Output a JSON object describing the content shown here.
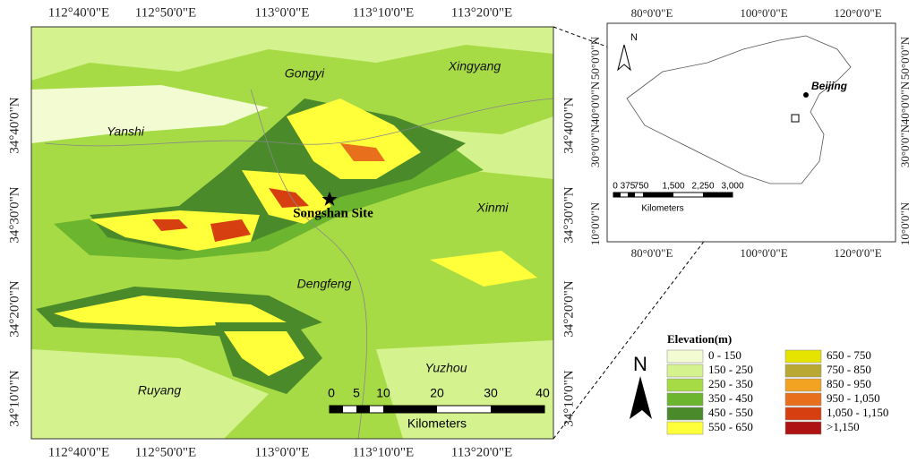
{
  "main_map": {
    "lon_labels": [
      "112°40'0\"E",
      "112°50'0\"E",
      "113°0'0\"E",
      "113°10'0\"E",
      "113°20'0\"E"
    ],
    "lat_labels": [
      "34°40'0\"N",
      "34°30'0\"N",
      "34°20'0\"N",
      "34°10'0\"N"
    ],
    "places": [
      "Gongyi",
      "Xingyang",
      "Yanshi",
      "Xinmi",
      "Dengfeng",
      "Ruyang",
      "Yuzhou"
    ],
    "site": "Songshan Site",
    "scale_bar": {
      "ticks": [
        "0",
        "5",
        "10",
        "20",
        "30",
        "40"
      ],
      "unit": "Kilometers"
    },
    "north": "N"
  },
  "inset_map": {
    "lon_labels": [
      "80°0'0\"E",
      "100°0'0\"E",
      "120°0'0\"E"
    ],
    "lat_labels": [
      "50°0'0\"N",
      "40°0'0\"N",
      "30°0'0\"N",
      "10°0'0\"N"
    ],
    "city": "Beijing",
    "scale_bar": {
      "ticks": [
        "0",
        "375",
        "750",
        "1,500",
        "2,250",
        "3,000"
      ],
      "unit": "Kilometers"
    },
    "north": "N"
  },
  "legend": {
    "title": "Elevation(m)",
    "items": [
      {
        "label": "0 - 150",
        "color": "#f2fbd2"
      },
      {
        "label": "150 - 250",
        "color": "#d4f28e"
      },
      {
        "label": "250 - 350",
        "color": "#a6db46"
      },
      {
        "label": "350 - 450",
        "color": "#6cb52f"
      },
      {
        "label": "450 - 550",
        "color": "#4a8a2a"
      },
      {
        "label": "550 - 650",
        "color": "#ffff3a"
      },
      {
        "label": "650 - 750",
        "color": "#e4e400"
      },
      {
        "label": "750 - 850",
        "color": "#b9a932"
      },
      {
        "label": "850 - 950",
        "color": "#f2a322"
      },
      {
        "label": "950 - 1,050",
        "color": "#e8701c"
      },
      {
        "label": "1,050 - 1,150",
        "color": "#d64010"
      },
      {
        "label": ">1,150",
        "color": "#ae1212"
      }
    ]
  }
}
